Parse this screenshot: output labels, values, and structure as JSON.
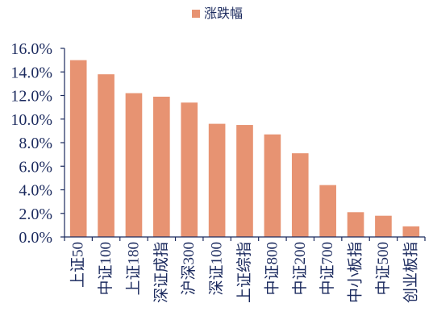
{
  "chart_data": {
    "type": "bar",
    "categories": [
      "上证50",
      "中证100",
      "上证180",
      "深证成指",
      "沪深300",
      "深证100",
      "上证综指",
      "中证800",
      "中证200",
      "中证700",
      "中小板指",
      "中证500",
      "创业板指"
    ],
    "series": [
      {
        "name": "涨跌幅",
        "values": [
          15.0,
          13.8,
          12.2,
          11.9,
          11.4,
          9.6,
          9.5,
          8.7,
          7.1,
          4.4,
          2.1,
          1.8,
          0.9
        ]
      }
    ],
    "unit": "%",
    "ylim": [
      0,
      16
    ],
    "yticks": [
      "0.0%",
      "2.0%",
      "4.0%",
      "6.0%",
      "8.0%",
      "10.0%",
      "12.0%",
      "14.0%",
      "16.0%"
    ],
    "legend": "top-center",
    "grid": false,
    "bar_color": "#E79372",
    "axis_color": "#1B2A5E"
  }
}
